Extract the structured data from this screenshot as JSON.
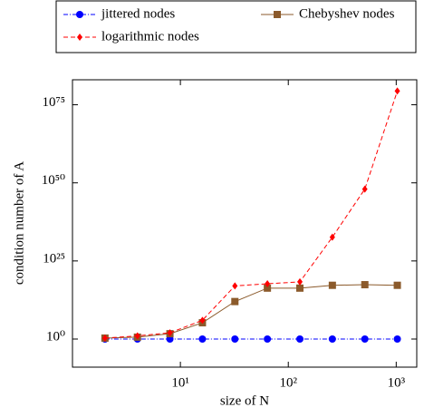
{
  "chart_data": {
    "type": "line",
    "xlabel": "size of N",
    "ylabel": "condition number of A",
    "xscale": "log",
    "yscale": "log",
    "xlim": [
      1,
      1550
    ],
    "ylim": [
      1e-09,
      1e+83
    ],
    "xticks": [
      {
        "value": 10,
        "label": "10¹"
      },
      {
        "value": 100,
        "label": "10²"
      },
      {
        "value": 1000,
        "label": "10³"
      }
    ],
    "yticks": [
      {
        "value": 1,
        "label": "10⁰"
      },
      {
        "value": 1e+25,
        "label": "10²⁵"
      },
      {
        "value": 1e+50,
        "label": "10⁵⁰"
      },
      {
        "value": 1e+75,
        "label": "10⁷⁵"
      }
    ],
    "x": [
      2,
      4,
      8,
      16,
      32,
      64,
      128,
      256,
      512,
      1024
    ],
    "series": [
      {
        "name": "jittered nodes",
        "color": "#0000ff",
        "linestyle": "dashdot",
        "marker": "circle",
        "values": [
          1,
          1,
          1,
          1,
          1,
          1,
          1,
          1,
          1,
          1
        ]
      },
      {
        "name": "Chebyshev nodes",
        "color": "#8b5a2b",
        "linestyle": "solid",
        "marker": "square",
        "values": [
          2,
          4,
          50,
          160000,
          1000000000000.0,
          2e+16,
          2e+16,
          1.6e+17,
          2.5e+17,
          1.6e+17
        ]
      },
      {
        "name": "logarithmic nodes",
        "color": "#ff0000",
        "linestyle": "dashed",
        "marker": "diamond",
        "values": [
          2,
          10,
          100,
          1000000,
          1e+17,
          5e+17,
          2e+18,
          4e+32,
          1e+48,
          2.5e+79
        ]
      }
    ]
  }
}
